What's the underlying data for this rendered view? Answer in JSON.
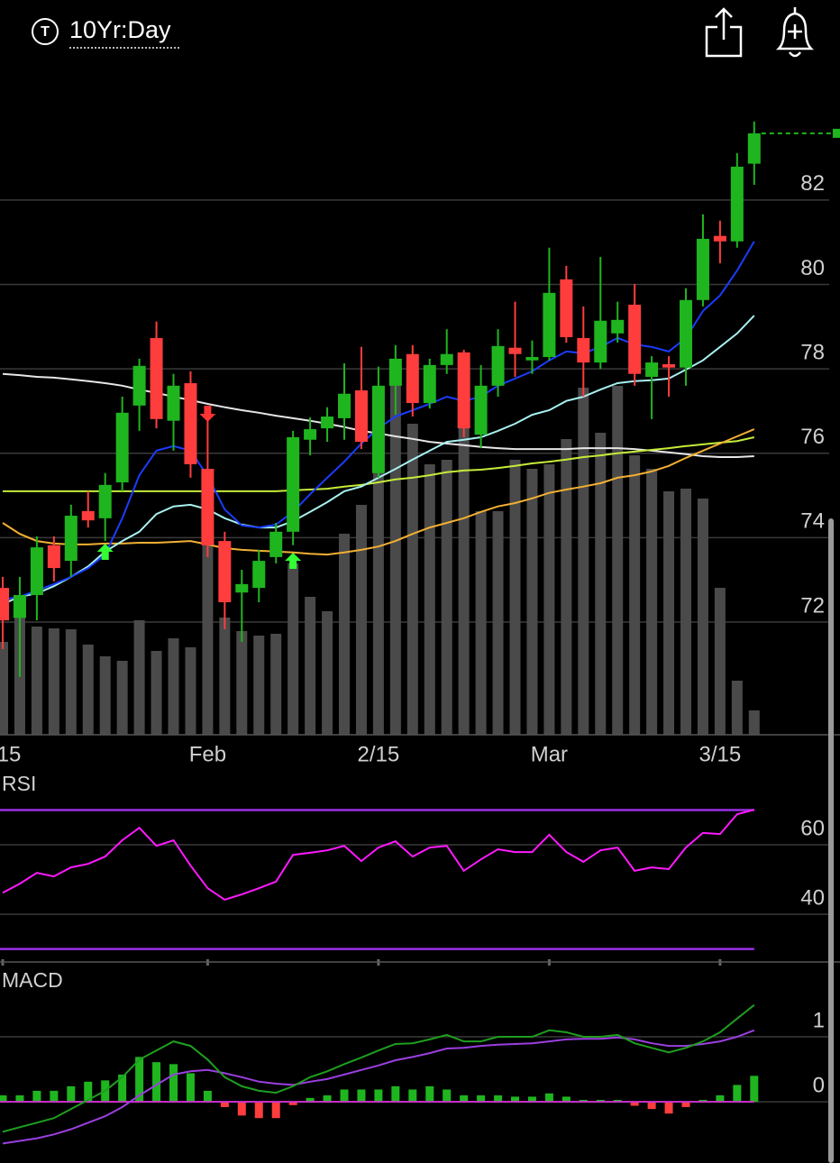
{
  "header": {
    "icon": "T",
    "title": "10Yr:Day"
  },
  "chart_data": [
    {
      "type": "candlestick",
      "categories": [
        "15",
        null,
        null,
        null,
        null,
        null,
        null,
        null,
        null,
        null,
        null,
        null,
        "Feb",
        null,
        null,
        null,
        null,
        null,
        null,
        null,
        null,
        null,
        "2/15",
        null,
        null,
        null,
        null,
        null,
        null,
        null,
        null,
        null,
        "Mar",
        null,
        null,
        null,
        null,
        null,
        null,
        null,
        null,
        null,
        "3/15",
        null,
        null
      ],
      "open": [
        72.81,
        72.1,
        72.64,
        73.82,
        73.45,
        74.63,
        74.46,
        75.31,
        77.13,
        78.73,
        76.77,
        77.66,
        75.63,
        73.92,
        72.7,
        72.81,
        73.54,
        74.14,
        76.32,
        76.59,
        76.83,
        77.49,
        75.53,
        77.6,
        78.35,
        77.19,
        78.09,
        78.39,
        76.44,
        77.6,
        78.5,
        78.2,
        78.28,
        80.12,
        78.73,
        78.15,
        78.84,
        79.52,
        77.81,
        78.11,
        78.03,
        79.63,
        81.15,
        81.02,
        82.86
      ],
      "high": [
        73.07,
        73.07,
        74.03,
        74.03,
        74.78,
        75.1,
        75.53,
        77.34,
        78.24,
        79.12,
        77.88,
        77.94,
        77.02,
        74.14,
        73.24,
        73.71,
        74.35,
        76.53,
        76.85,
        77.09,
        78.13,
        78.52,
        78.05,
        78.56,
        78.56,
        78.24,
        78.94,
        78.45,
        78.09,
        78.94,
        79.59,
        78.67,
        80.87,
        80.44,
        79.48,
        80.65,
        79.59,
        80.01,
        78.3,
        78.3,
        79.91,
        81.66,
        81.51,
        83.11,
        83.86
      ],
      "low": [
        71.36,
        70.7,
        72.04,
        72.96,
        73.07,
        74.24,
        73.92,
        75.1,
        76.53,
        76.59,
        76.06,
        75.42,
        73.54,
        71.83,
        71.53,
        72.47,
        73.39,
        73.82,
        75.95,
        76.27,
        76.32,
        76.1,
        75.42,
        76.91,
        76.87,
        77.06,
        77.88,
        76.38,
        76.12,
        77.34,
        77.81,
        77.88,
        78.2,
        78.62,
        77.34,
        78.0,
        78.62,
        77.6,
        76.81,
        77.34,
        77.6,
        79.48,
        80.5,
        80.87,
        82.36
      ],
      "close": [
        72.04,
        72.64,
        73.77,
        73.28,
        74.52,
        74.41,
        75.25,
        76.96,
        78.07,
        76.81,
        77.6,
        75.74,
        73.82,
        72.47,
        72.9,
        73.45,
        74.14,
        76.38,
        76.57,
        76.87,
        77.41,
        76.27,
        77.6,
        78.24,
        77.19,
        78.09,
        78.35,
        76.59,
        77.6,
        78.54,
        78.35,
        78.28,
        79.8,
        78.75,
        78.15,
        79.14,
        79.16,
        77.88,
        78.15,
        78.03,
        79.63,
        81.08,
        81.02,
        82.79,
        83.58
      ],
      "up_color": "#1fb51f",
      "down_color": "#ff3d3d",
      "lines": [
        {
          "color": "#e6e6e6",
          "values": [
            77.88,
            77.85,
            77.81,
            77.79,
            77.75,
            77.71,
            77.66,
            77.6,
            77.51,
            77.43,
            77.34,
            77.26,
            77.17,
            77.09,
            77.02,
            76.96,
            76.89,
            76.83,
            76.77,
            76.7,
            76.62,
            76.53,
            76.47,
            76.4,
            76.34,
            76.27,
            76.23,
            76.19,
            76.15,
            76.12,
            76.1,
            76.1,
            76.1,
            76.1,
            76.12,
            76.12,
            76.12,
            76.1,
            76.06,
            76.02,
            75.98,
            75.93,
            75.91,
            75.91,
            75.93
          ]
        },
        {
          "color": "#c5ec3a",
          "values": [
            75.1,
            75.1,
            75.1,
            75.1,
            75.1,
            75.1,
            75.1,
            75.1,
            75.1,
            75.1,
            75.1,
            75.1,
            75.1,
            75.1,
            75.1,
            75.1,
            75.1,
            75.12,
            75.14,
            75.16,
            75.21,
            75.25,
            75.31,
            75.38,
            75.42,
            75.48,
            75.55,
            75.59,
            75.61,
            75.65,
            75.7,
            75.76,
            75.8,
            75.85,
            75.91,
            75.95,
            76.0,
            76.04,
            76.08,
            76.12,
            76.17,
            76.21,
            76.25,
            76.29,
            76.38
          ]
        },
        {
          "color": "#f2b033",
          "values": [
            74.35,
            74.09,
            73.92,
            73.86,
            73.84,
            73.84,
            73.86,
            73.86,
            73.88,
            73.88,
            73.9,
            73.92,
            73.84,
            73.75,
            73.71,
            73.69,
            73.67,
            73.65,
            73.62,
            73.6,
            73.65,
            73.71,
            73.79,
            73.92,
            74.09,
            74.24,
            74.35,
            74.46,
            74.61,
            74.74,
            74.82,
            74.93,
            75.06,
            75.14,
            75.21,
            75.29,
            75.42,
            75.48,
            75.57,
            75.7,
            75.89,
            76.06,
            76.23,
            76.4,
            76.57
          ]
        },
        {
          "color": "#a8f0f0",
          "values": [
            72.43,
            72.6,
            72.68,
            72.85,
            73.07,
            73.32,
            73.67,
            73.92,
            74.14,
            74.56,
            74.74,
            74.78,
            74.67,
            74.46,
            74.31,
            74.24,
            74.24,
            74.39,
            74.61,
            74.84,
            75.1,
            75.21,
            75.42,
            75.63,
            75.85,
            76.06,
            76.27,
            76.32,
            76.38,
            76.53,
            76.7,
            76.91,
            77.02,
            77.24,
            77.34,
            77.51,
            77.66,
            77.71,
            77.73,
            77.77,
            77.98,
            78.2,
            78.52,
            78.84,
            79.26
          ]
        },
        {
          "color": "#1a3cff",
          "values": [
            72.53,
            72.6,
            72.75,
            72.9,
            73.07,
            73.28,
            73.6,
            74.46,
            75.48,
            76.06,
            76.17,
            76.06,
            75.46,
            74.67,
            74.29,
            74.24,
            74.31,
            74.61,
            75.03,
            75.42,
            75.8,
            76.23,
            76.59,
            76.87,
            77.02,
            77.17,
            77.34,
            77.24,
            77.34,
            77.6,
            77.77,
            77.94,
            78.2,
            78.41,
            78.37,
            78.52,
            78.73,
            78.58,
            78.52,
            78.41,
            78.73,
            79.37,
            79.74,
            80.33,
            81.02
          ]
        }
      ],
      "volume": {
        "color": "#4a4a4a",
        "values": [
          103,
          133,
          120,
          118,
          117,
          100,
          87,
          82,
          127,
          93,
          107,
          97,
          220,
          130,
          115,
          110,
          112,
          190,
          153,
          137,
          223,
          255,
          310,
          390,
          345,
          300,
          305,
          355,
          248,
          248,
          305,
          295,
          300,
          328,
          385,
          335,
          387,
          310,
          295,
          270,
          273,
          262,
          163,
          60,
          27
        ]
      },
      "volume_lim": [
        0,
        735
      ],
      "ylim": [
        69.33,
        85.03
      ],
      "yticks": [
        72,
        74,
        76,
        78,
        80,
        82
      ],
      "grid": true,
      "last_price_color": "#1fb51f"
    },
    {
      "type": "line",
      "title": "RSI",
      "color": "#ff1aff",
      "values": [
        46.2,
        48.8,
        51.9,
        50.9,
        53.5,
        54.5,
        56.6,
        61.3,
        64.9,
        59.7,
        61.3,
        54,
        47.5,
        44.2,
        45.7,
        47.5,
        49.4,
        57.1,
        57.7,
        58.4,
        59.7,
        55.3,
        59.2,
        61.0,
        56.6,
        59.2,
        59.7,
        52.5,
        55.8,
        58.7,
        57.9,
        57.9,
        62.9,
        57.9,
        55.1,
        58.4,
        59.2,
        52.5,
        53.5,
        53.0,
        59.2,
        63.4,
        63.1,
        68.8,
        70.1
      ],
      "levels": [
        70,
        30
      ],
      "level_color": "#9a2fe6",
      "ylim": [
        26,
        80
      ],
      "yticks": [
        40,
        60
      ],
      "grid": true
    },
    {
      "type": "macd",
      "title": "MACD",
      "macd": {
        "color": "#1f9e1f",
        "values": [
          -0.46,
          -0.39,
          -0.32,
          -0.25,
          -0.11,
          0.03,
          0.17,
          0.38,
          0.65,
          0.79,
          0.93,
          0.86,
          0.65,
          0.38,
          0.24,
          0.17,
          0.14,
          0.24,
          0.38,
          0.47,
          0.58,
          0.68,
          0.79,
          0.89,
          0.9,
          0.96,
          1.03,
          0.93,
          0.93,
          1.0,
          1.0,
          1.0,
          1.1,
          1.07,
          1.0,
          1.0,
          1.03,
          0.9,
          0.83,
          0.76,
          0.83,
          0.93,
          1.07,
          1.28,
          1.49
        ]
      },
      "signal": {
        "color": "#9b3fe0",
        "values": [
          -0.64,
          -0.6,
          -0.56,
          -0.5,
          -0.42,
          -0.32,
          -0.22,
          -0.08,
          0.1,
          0.26,
          0.42,
          0.47,
          0.49,
          0.44,
          0.38,
          0.31,
          0.28,
          0.26,
          0.31,
          0.35,
          0.42,
          0.49,
          0.56,
          0.64,
          0.69,
          0.75,
          0.82,
          0.83,
          0.86,
          0.88,
          0.89,
          0.9,
          0.93,
          0.96,
          0.97,
          0.97,
          0.99,
          0.96,
          0.9,
          0.86,
          0.86,
          0.89,
          0.93,
          1.0,
          1.1
        ]
      },
      "histogram": {
        "up_color": "#1fb51f",
        "down_color": "#ff3d3d",
        "values": [
          0.1,
          0.1,
          0.17,
          0.17,
          0.24,
          0.31,
          0.33,
          0.42,
          0.69,
          0.61,
          0.58,
          0.44,
          0.17,
          -0.08,
          -0.21,
          -0.25,
          -0.25,
          -0.05,
          0.06,
          0.1,
          0.19,
          0.19,
          0.19,
          0.24,
          0.19,
          0.24,
          0.19,
          0.1,
          0.1,
          0.1,
          0.08,
          0.08,
          0.13,
          0.08,
          0.03,
          0.03,
          0.03,
          -0.06,
          -0.11,
          -0.18,
          -0.08,
          0.03,
          0.1,
          0.26,
          0.4
        ]
      },
      "baseline_color": "#cc33cc",
      "ylim": [
        -0.94,
        2.04
      ],
      "yticks": [
        0,
        1
      ],
      "grid": true
    }
  ]
}
